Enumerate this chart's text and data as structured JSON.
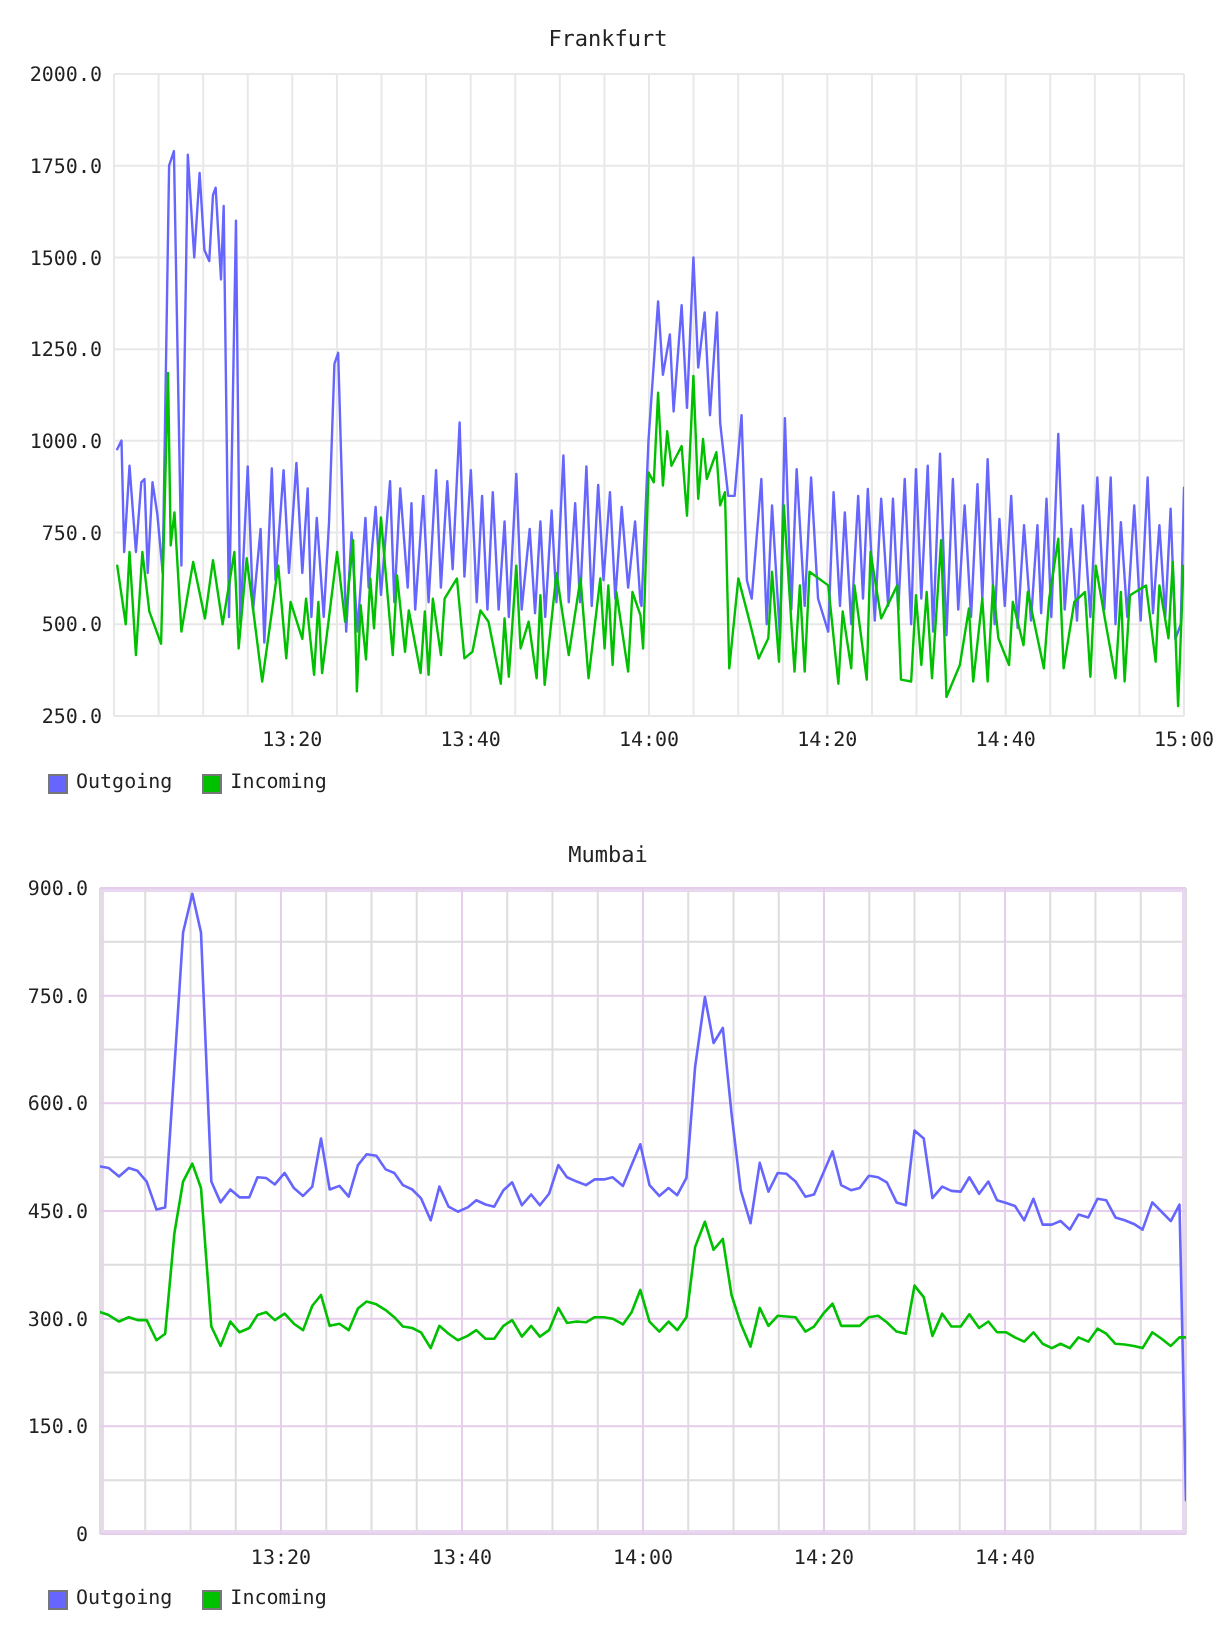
{
  "chart_data": [
    {
      "type": "line",
      "title": "Frankfurt",
      "series": [
        {
          "name": "Outgoing",
          "color": "#6666ff",
          "x": [
            13.006,
            13.014,
            13.019,
            13.029,
            13.041,
            13.051,
            13.057,
            13.063,
            13.072,
            13.081,
            13.091,
            13.103,
            13.112,
            13.126,
            13.138,
            13.15,
            13.16,
            13.169,
            13.178,
            13.185,
            13.19,
            13.2,
            13.205,
            13.215,
            13.228,
            13.236,
            13.25,
            13.26,
            13.274,
            13.281,
            13.295,
            13.302,
            13.317,
            13.327,
            13.341,
            13.352,
            13.362,
            13.369,
            13.379,
            13.392,
            13.402,
            13.412,
            13.419,
            13.434,
            13.444,
            13.455,
            13.47,
            13.476,
            13.489,
            13.499,
            13.516,
            13.524,
            13.535,
            13.549,
            13.556,
            13.563,
            13.578,
            13.588,
            13.602,
            13.611,
            13.623,
            13.633,
            13.646,
            13.655,
            13.667,
            13.678,
            13.688,
            13.698,
            13.708,
            13.719,
            13.73,
            13.738,
            13.752,
            13.762,
            13.777,
            13.787,
            13.797,
            13.806,
            13.818,
            13.827,
            13.84,
            13.85,
            13.862,
            13.871,
            13.883,
            13.893,
            13.905,
            13.915,
            13.927,
            13.937,
            13.949,
            13.961,
            13.974,
            13.984,
            13.986,
            13.999,
            14.017,
            14.026,
            14.039,
            14.046,
            14.061,
            14.071,
            14.083,
            14.092,
            14.104,
            14.114,
            14.127,
            14.133,
            14.148,
            14.16,
            14.173,
            14.183,
            14.192,
            14.21,
            14.22,
            14.23,
            14.245,
            14.254,
            14.266,
            14.276,
            14.291,
            14.303,
            14.316,
            14.335,
            14.345,
            14.357,
            14.366,
            14.378,
            14.391,
            14.4,
            14.409,
            14.422,
            14.434,
            14.447,
            14.456,
            14.466,
            14.478,
            14.49,
            14.499,
            14.509,
            14.521,
            14.531,
            14.544,
            14.556,
            14.568,
            14.578,
            14.59,
            14.602,
            14.614,
            14.623,
            14.633,
            14.646,
            14.655,
            14.665,
            14.677,
            14.689,
            14.701,
            14.714,
            14.726,
            14.733,
            14.743,
            14.752,
            14.765,
            14.777,
            14.789,
            14.8,
            14.811,
            14.825,
            14.838,
            14.851,
            14.863,
            14.872,
            14.882,
            14.894,
            14.907,
            14.919,
            14.932,
            14.942,
            14.954,
            14.965,
            14.975,
            14.984,
            14.994,
            15.0
          ],
          "values": [
            977,
            1001,
            697,
            932,
            697,
            887,
            896,
            640,
            887,
            800,
            640,
            1750,
            1790,
            660,
            1780,
            1500,
            1730,
            1520,
            1490,
            1670,
            1690,
            1440,
            1640,
            520,
            1600,
            500,
            930,
            540,
            760,
            450,
            925,
            620,
            920,
            640,
            940,
            640,
            870,
            520,
            790,
            520,
            780,
            1210,
            1240,
            480,
            750,
            480,
            790,
            600,
            820,
            580,
            890,
            560,
            870,
            600,
            830,
            540,
            850,
            560,
            920,
            600,
            890,
            650,
            1050,
            630,
            920,
            560,
            850,
            540,
            860,
            540,
            780,
            520,
            910,
            540,
            760,
            530,
            780,
            520,
            810,
            560,
            960,
            560,
            830,
            560,
            930,
            550,
            880,
            620,
            860,
            570,
            820,
            600,
            780,
            560,
            550,
            1000,
            1380,
            1180,
            1290,
            1080,
            1370,
            1090,
            1500,
            1200,
            1350,
            1070,
            1350,
            1050,
            850,
            850,
            1070,
            620,
            570,
            896,
            500,
            824,
            460,
            1062,
            540,
            923,
            550,
            900,
            570,
            480,
            860,
            550,
            805,
            500,
            850,
            570,
            869,
            510,
            842,
            550,
            842,
            540,
            896,
            500,
            923,
            570,
            932,
            480,
            965,
            470,
            896,
            540,
            824,
            520,
            882,
            570,
            950,
            500,
            787,
            550,
            850,
            490,
            770,
            510,
            770,
            530,
            842,
            520,
            1019,
            540,
            760,
            510,
            824,
            520,
            900,
            540,
            900,
            500,
            778,
            520,
            824,
            510,
            900,
            530,
            770,
            520,
            815,
            460,
            500,
            872
          ]
        },
        {
          "name": "Incoming",
          "color": "#00c000",
          "x": [
            13.006,
            13.022,
            13.029,
            13.041,
            13.053,
            13.066,
            13.088,
            13.101,
            13.106,
            13.113,
            13.126,
            13.148,
            13.17,
            13.185,
            13.203,
            13.225,
            13.233,
            13.248,
            13.277,
            13.307,
            13.322,
            13.33,
            13.352,
            13.359,
            13.374,
            13.382,
            13.389,
            13.417,
            13.432,
            13.447,
            13.454,
            13.461,
            13.471,
            13.479,
            13.486,
            13.499,
            13.521,
            13.529,
            13.544,
            13.551,
            13.573,
            13.581,
            13.588,
            13.596,
            13.611,
            13.618,
            13.641,
            13.655,
            13.67,
            13.685,
            13.7,
            13.723,
            13.73,
            13.738,
            13.752,
            13.76,
            13.775,
            13.79,
            13.797,
            13.805,
            13.827,
            13.85,
            13.872,
            13.887,
            13.909,
            13.917,
            13.924,
            13.932,
            13.939,
            13.961,
            13.969,
            13.984,
            13.989,
            13.999,
            14.009,
            14.017,
            14.026,
            14.034,
            14.042,
            14.061,
            14.071,
            14.083,
            14.092,
            14.101,
            14.108,
            14.126,
            14.133,
            14.142,
            14.15,
            14.167,
            14.185,
            14.205,
            14.223,
            14.23,
            14.243,
            14.252,
            14.272,
            14.282,
            14.291,
            14.3,
            14.335,
            14.354,
            14.362,
            14.378,
            14.384,
            14.407,
            14.414,
            14.434,
            14.464,
            14.471,
            14.49,
            14.499,
            14.509,
            14.519,
            14.529,
            14.546,
            14.556,
            14.581,
            14.598,
            14.606,
            14.623,
            14.633,
            14.643,
            14.653,
            14.673,
            14.68,
            14.7,
            14.708,
            14.738,
            14.748,
            14.765,
            14.775,
            14.795,
            14.815,
            14.825,
            14.835,
            14.852,
            14.872,
            14.882,
            14.889,
            14.899,
            14.929,
            14.947,
            14.954,
            14.971,
            14.979,
            14.989,
            14.999
          ],
          "values": [
            660,
            500,
            697,
            416,
            697,
            535,
            447,
            1185,
            715,
            805,
            480,
            670,
            516,
            675,
            500,
            697,
            434,
            680,
            344,
            660,
            407,
            561,
            460,
            570,
            362,
            561,
            367,
            697,
            507,
            729,
            317,
            552,
            404,
            625,
            489,
            791,
            416,
            633,
            425,
            538,
            367,
            535,
            362,
            570,
            416,
            570,
            625,
            407,
            425,
            538,
            507,
            338,
            516,
            357,
            660,
            434,
            507,
            353,
            579,
            335,
            639,
            416,
            625,
            353,
            625,
            434,
            606,
            389,
            588,
            371,
            588,
            525,
            434,
            914,
            887,
            1131,
            878,
            1026,
            932,
            986,
            796,
            1177,
            842,
            1005,
            896,
            969,
            824,
            860,
            380,
            625,
            525,
            407,
            462,
            643,
            398,
            824,
            371,
            606,
            371,
            643,
            606,
            338,
            535,
            380,
            606,
            349,
            697,
            516,
            606,
            349,
            344,
            579,
            389,
            588,
            353,
            729,
            302,
            389,
            543,
            344,
            570,
            344,
            606,
            462,
            389,
            561,
            443,
            588,
            380,
            570,
            733,
            380,
            561,
            588,
            357,
            660,
            516,
            353,
            588,
            344,
            579,
            606,
            398,
            606,
            462,
            670,
            277,
            660
          ]
        }
      ],
      "xlim": [
        13,
        15
      ],
      "ylim": [
        250,
        2000
      ],
      "xticks": [
        {
          "value": 13,
          "label": null
        },
        {
          "value": 13.0833,
          "label": null
        },
        {
          "value": 13.1667,
          "label": null
        },
        {
          "value": 13.25,
          "label": null
        },
        {
          "value": 13.3333,
          "label": "13:20"
        },
        {
          "value": 13.4167,
          "label": null
        },
        {
          "value": 13.5,
          "label": null
        },
        {
          "value": 13.5833,
          "label": null
        },
        {
          "value": 13.6667,
          "label": "13:40"
        },
        {
          "value": 13.75,
          "label": null
        },
        {
          "value": 13.8333,
          "label": null
        },
        {
          "value": 13.9167,
          "label": null
        },
        {
          "value": 14,
          "label": "14:00"
        },
        {
          "value": 14.0833,
          "label": null
        },
        {
          "value": 14.1667,
          "label": null
        },
        {
          "value": 14.25,
          "label": null
        },
        {
          "value": 14.3333,
          "label": "14:20"
        },
        {
          "value": 14.4167,
          "label": null
        },
        {
          "value": 14.5,
          "label": null
        },
        {
          "value": 14.5833,
          "label": null
        },
        {
          "value": 14.6667,
          "label": "14:40"
        },
        {
          "value": 14.75,
          "label": null
        },
        {
          "value": 14.8333,
          "label": null
        },
        {
          "value": 14.9167,
          "label": null
        },
        {
          "value": 15,
          "label": "15:00"
        }
      ],
      "yticks": [
        {
          "value": 250,
          "label": "250.0"
        },
        {
          "value": 500,
          "label": "500.0"
        },
        {
          "value": 750,
          "label": "750.0"
        },
        {
          "value": 1000,
          "label": "1000.0"
        },
        {
          "value": 1250,
          "label": "1250.0"
        },
        {
          "value": 1500,
          "label": "1500.0"
        },
        {
          "value": 1750,
          "label": "1750.0"
        },
        {
          "value": 2000,
          "label": "2000.0"
        }
      ],
      "grid": true,
      "legend": "bottom left"
    },
    {
      "type": "line",
      "title": "Mumbai",
      "x": [
        13.001,
        13.016,
        13.035,
        13.053,
        13.069,
        13.086,
        13.104,
        13.12,
        13.137,
        13.153,
        13.17,
        13.186,
        13.205,
        13.222,
        13.24,
        13.257,
        13.275,
        13.29,
        13.306,
        13.322,
        13.34,
        13.357,
        13.374,
        13.391,
        13.407,
        13.423,
        13.441,
        13.458,
        13.475,
        13.491,
        13.509,
        13.526,
        13.542,
        13.558,
        13.575,
        13.591,
        13.609,
        13.625,
        13.642,
        13.659,
        13.677,
        13.693,
        13.71,
        13.726,
        13.743,
        13.759,
        13.777,
        13.794,
        13.81,
        13.827,
        13.844,
        13.86,
        13.878,
        13.895,
        13.911,
        13.928,
        13.944,
        13.963,
        13.979,
        13.995,
        14.012,
        14.03,
        14.047,
        14.063,
        14.08,
        14.096,
        14.114,
        14.13,
        14.147,
        14.163,
        14.18,
        14.198,
        14.215,
        14.231,
        14.248,
        14.264,
        14.281,
        14.299,
        14.315,
        14.332,
        14.349,
        14.365,
        14.383,
        14.399,
        14.416,
        14.433,
        14.449,
        14.467,
        14.484,
        14.5,
        14.517,
        14.533,
        14.551,
        14.568,
        14.585,
        14.601,
        14.619,
        14.636,
        14.652,
        14.669,
        14.685,
        14.702,
        14.719,
        14.736,
        14.753,
        14.769,
        14.786,
        14.802,
        14.82,
        14.837,
        14.853,
        14.87,
        14.887,
        14.904,
        14.92,
        14.938,
        14.955,
        14.972,
        14.988,
        15.0
      ],
      "series": [
        {
          "name": "Outgoing",
          "color": "#6666ff",
          "values": [
            512,
            510,
            498,
            510,
            506,
            491,
            452,
            455,
            650,
            838,
            892,
            838,
            491,
            462,
            480,
            469,
            469,
            497,
            496,
            487,
            503,
            482,
            471,
            484,
            551,
            480,
            485,
            470,
            514,
            529,
            527,
            508,
            503,
            486,
            480,
            468,
            437,
            484,
            456,
            449,
            455,
            465,
            459,
            456,
            479,
            490,
            458,
            473,
            458,
            474,
            514,
            497,
            491,
            486,
            494,
            494,
            497,
            485,
            514,
            543,
            486,
            471,
            482,
            472,
            496,
            651,
            748,
            684,
            705,
            586,
            479,
            433,
            517,
            477,
            503,
            502,
            491,
            470,
            473,
            503,
            533,
            486,
            479,
            482,
            499,
            497,
            490,
            462,
            458,
            562,
            551,
            468,
            484,
            478,
            477,
            497,
            474,
            491,
            465,
            461,
            457,
            437,
            467,
            431,
            431,
            436,
            424,
            445,
            441,
            467,
            465,
            441,
            437,
            432,
            424,
            462,
            449,
            436,
            459,
            47
          ]
        },
        {
          "name": "Incoming",
          "color": "#00c000",
          "values": [
            309,
            305,
            296,
            302,
            298,
            298,
            270,
            279,
            419,
            491,
            516,
            482,
            289,
            262,
            296,
            281,
            287,
            305,
            309,
            298,
            307,
            293,
            284,
            318,
            333,
            290,
            293,
            284,
            314,
            324,
            320,
            312,
            302,
            289,
            287,
            281,
            259,
            290,
            279,
            270,
            276,
            284,
            272,
            272,
            290,
            298,
            275,
            290,
            275,
            284,
            315,
            294,
            296,
            295,
            302,
            302,
            300,
            292,
            309,
            340,
            296,
            282,
            296,
            284,
            302,
            400,
            435,
            396,
            411,
            333,
            293,
            261,
            315,
            290,
            304,
            303,
            302,
            282,
            289,
            307,
            321,
            290,
            290,
            290,
            302,
            304,
            295,
            282,
            279,
            346,
            330,
            276,
            307,
            289,
            289,
            306,
            287,
            296,
            281,
            281,
            274,
            268,
            281,
            265,
            259,
            265,
            259,
            274,
            268,
            286,
            279,
            265,
            264,
            262,
            259,
            281,
            272,
            262,
            274,
            274
          ]
        }
      ],
      "xlim": [
        13,
        15
      ],
      "ylim": [
        0,
        900
      ],
      "xticks": [
        {
          "value": 13,
          "label": null
        },
        {
          "value": 13.0833,
          "label": null
        },
        {
          "value": 13.1667,
          "label": null
        },
        {
          "value": 13.25,
          "label": null
        },
        {
          "value": 13.3333,
          "label": "13:20"
        },
        {
          "value": 13.4167,
          "label": null
        },
        {
          "value": 13.5,
          "label": null
        },
        {
          "value": 13.5833,
          "label": null
        },
        {
          "value": 13.6667,
          "label": "13:40"
        },
        {
          "value": 13.75,
          "label": null
        },
        {
          "value": 13.8333,
          "label": null
        },
        {
          "value": 13.9167,
          "label": null
        },
        {
          "value": 14,
          "label": "14:00"
        },
        {
          "value": 14.0833,
          "label": null
        },
        {
          "value": 14.1667,
          "label": null
        },
        {
          "value": 14.25,
          "label": null
        },
        {
          "value": 14.3333,
          "label": "14:20"
        },
        {
          "value": 14.4167,
          "label": null
        },
        {
          "value": 14.5,
          "label": null
        },
        {
          "value": 14.5833,
          "label": null
        },
        {
          "value": 14.6667,
          "label": "14:40"
        },
        {
          "value": 14.75,
          "label": null
        },
        {
          "value": 14.8333,
          "label": null
        },
        {
          "value": 14.9167,
          "label": null
        },
        {
          "value": 15,
          "label": null
        }
      ],
      "yticks": [
        0,
        {
          "value": 75,
          "label": null
        },
        {
          "value": 150,
          "label": "150.0"
        },
        {
          "value": 225,
          "label": null
        },
        {
          "value": 300,
          "label": "300.0"
        },
        {
          "value": 375,
          "label": null
        },
        {
          "value": 450,
          "label": "450.0"
        },
        {
          "value": 525,
          "label": null
        },
        {
          "value": 600,
          "label": "600.0"
        },
        {
          "value": 675,
          "label": null
        },
        {
          "value": 750,
          "label": "750.0"
        },
        {
          "value": 825,
          "label": null
        },
        {
          "value": 900,
          "label": "900.0"
        }
      ],
      "grid": true,
      "legend": "bottom left"
    }
  ]
}
